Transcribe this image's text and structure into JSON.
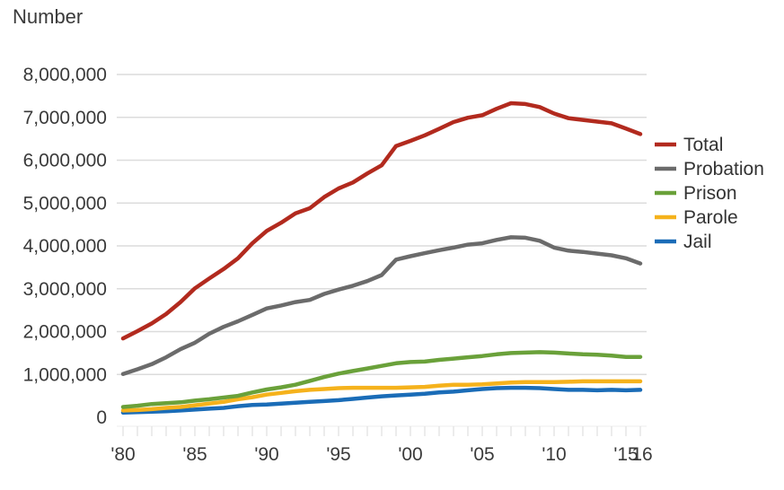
{
  "chart_data": {
    "type": "line",
    "title": "",
    "ylabel": "Number",
    "xlabel": "",
    "ylim": [
      0,
      8000000
    ],
    "xlim": [
      1980,
      2016
    ],
    "grid": true,
    "legend_position": "right",
    "y_ticks": [
      {
        "value": 0,
        "label": "0"
      },
      {
        "value": 1000000,
        "label": "1,000,000"
      },
      {
        "value": 2000000,
        "label": "2,000,000"
      },
      {
        "value": 3000000,
        "label": "3,000,000"
      },
      {
        "value": 4000000,
        "label": "4,000,000"
      },
      {
        "value": 5000000,
        "label": "5,000,000"
      },
      {
        "value": 6000000,
        "label": "6,000,000"
      },
      {
        "value": 7000000,
        "label": "7,000,000"
      },
      {
        "value": 8000000,
        "label": "8,000,000"
      }
    ],
    "x_ticks": [
      {
        "value": 1980,
        "label": "'80"
      },
      {
        "value": 1985,
        "label": "'85"
      },
      {
        "value": 1990,
        "label": "'90"
      },
      {
        "value": 1995,
        "label": "'95"
      },
      {
        "value": 2000,
        "label": "'00"
      },
      {
        "value": 2005,
        "label": "'05"
      },
      {
        "value": 2010,
        "label": "'10"
      },
      {
        "value": 2015,
        "label": "'15"
      },
      {
        "value": 2016,
        "label": "'16"
      }
    ],
    "x": [
      1980,
      1981,
      1982,
      1983,
      1984,
      1985,
      1986,
      1987,
      1988,
      1989,
      1990,
      1991,
      1992,
      1993,
      1994,
      1995,
      1996,
      1997,
      1998,
      1999,
      2000,
      2001,
      2002,
      2003,
      2004,
      2005,
      2006,
      2007,
      2008,
      2009,
      2010,
      2011,
      2012,
      2013,
      2014,
      2015,
      2016
    ],
    "series": [
      {
        "name": "Total",
        "color": "#b22a1e",
        "values": [
          1840000,
          2010000,
          2190000,
          2410000,
          2690000,
          3010000,
          3240000,
          3460000,
          3710000,
          4060000,
          4350000,
          4540000,
          4760000,
          4880000,
          5140000,
          5340000,
          5480000,
          5690000,
          5880000,
          6330000,
          6450000,
          6580000,
          6730000,
          6890000,
          6990000,
          7050000,
          7200000,
          7330000,
          7310000,
          7240000,
          7090000,
          6980000,
          6940000,
          6900000,
          6860000,
          6740000,
          6610000
        ]
      },
      {
        "name": "Probation",
        "color": "#6b6b6b",
        "values": [
          1010000,
          1120000,
          1240000,
          1400000,
          1590000,
          1740000,
          1950000,
          2110000,
          2240000,
          2390000,
          2540000,
          2610000,
          2690000,
          2740000,
          2880000,
          2980000,
          3070000,
          3180000,
          3320000,
          3680000,
          3760000,
          3830000,
          3900000,
          3960000,
          4030000,
          4060000,
          4140000,
          4200000,
          4190000,
          4120000,
          3960000,
          3890000,
          3860000,
          3820000,
          3780000,
          3710000,
          3590000
        ]
      },
      {
        "name": "Prison",
        "color": "#6aa13a",
        "values": [
          240000,
          270000,
          310000,
          330000,
          350000,
          390000,
          420000,
          460000,
          500000,
          580000,
          650000,
          700000,
          760000,
          850000,
          940000,
          1020000,
          1080000,
          1140000,
          1200000,
          1260000,
          1290000,
          1300000,
          1340000,
          1370000,
          1400000,
          1430000,
          1470000,
          1500000,
          1510000,
          1520000,
          1510000,
          1490000,
          1470000,
          1460000,
          1440000,
          1410000,
          1410000
        ]
      },
      {
        "name": "Parole",
        "color": "#f5b21c",
        "values": [
          160000,
          170000,
          190000,
          220000,
          240000,
          280000,
          320000,
          360000,
          420000,
          470000,
          530000,
          570000,
          610000,
          640000,
          660000,
          680000,
          690000,
          690000,
          690000,
          690000,
          700000,
          710000,
          740000,
          760000,
          760000,
          770000,
          790000,
          810000,
          820000,
          820000,
          820000,
          830000,
          840000,
          840000,
          840000,
          840000,
          840000
        ]
      },
      {
        "name": "Jail",
        "color": "#1a6cb7",
        "values": [
          110000,
          120000,
          130000,
          140000,
          160000,
          180000,
          200000,
          220000,
          260000,
          290000,
          300000,
          320000,
          340000,
          360000,
          380000,
          400000,
          430000,
          460000,
          490000,
          510000,
          530000,
          550000,
          580000,
          600000,
          630000,
          660000,
          680000,
          690000,
          690000,
          680000,
          660000,
          640000,
          640000,
          630000,
          640000,
          630000,
          640000
        ]
      }
    ]
  }
}
